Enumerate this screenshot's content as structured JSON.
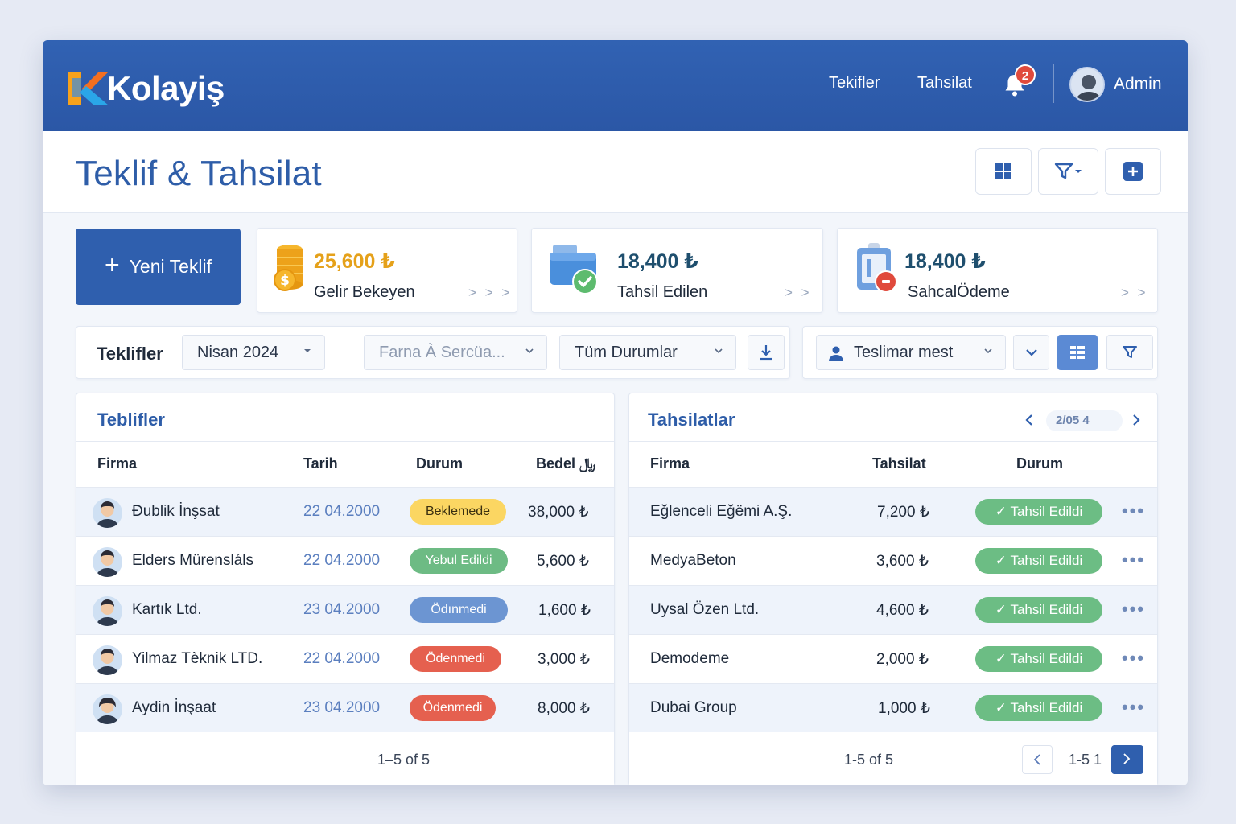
{
  "app": {
    "logo_text": "Kolayiş"
  },
  "nav": {
    "links": [
      "Tekifler",
      "Tahsilat"
    ],
    "notification_count": "2",
    "user": "Admin"
  },
  "page": {
    "title": "Teklif & Tahsilat"
  },
  "toolbar_icons": [
    "grid-icon",
    "filter-icon",
    "add-icon"
  ],
  "new_button": {
    "label": "Yeni Teklif"
  },
  "stats": [
    {
      "amount": "25,600 ₺",
      "label": "Gelir Bekeyen",
      "color": "#e5a11a",
      "icon": "coins-icon"
    },
    {
      "amount": "18,400 ₺",
      "label": "Tahsil Edilen",
      "color": "#1f4f6e",
      "icon": "wallet-check-icon"
    },
    {
      "amount": "18,400 ₺",
      "label": "SahcalÖdeme",
      "color": "#1f4f6e",
      "icon": "clipboard-alert-icon"
    }
  ],
  "filters": {
    "label": "Teklifler",
    "month": "Nisan 2024",
    "company_placeholder": "Farna À Sercüa...",
    "status": "Tüm Durumlar",
    "person": "Teslimar mest"
  },
  "quotes": {
    "title": "Teblifler",
    "columns": [
      "Firma",
      "Tarih",
      "Durum",
      "Bedel ﷼"
    ],
    "rows": [
      {
        "firm": "Đublik İnşsat",
        "date": "22 04.2000",
        "status": "Beklemede",
        "status_color": "yellow",
        "amount": "38,000 ₺"
      },
      {
        "firm": "Elders Mürensláls",
        "date": "22 04.2000",
        "status": "Yebul Edildi",
        "status_color": "green",
        "amount": "5,600 ₺"
      },
      {
        "firm": "Kartık Ltd.",
        "date": "23 04.2000",
        "status": "Ödınmedi",
        "status_color": "blue",
        "amount": "1,600 ₺"
      },
      {
        "firm": "Yilmaz Tèknik LTD.",
        "date": "22 04.2000",
        "status": "Ödenmedi",
        "status_color": "red",
        "amount": "3,000 ₺"
      },
      {
        "firm": "Aydin İnşaat",
        "date": "23 04.2000",
        "status": "Ödenmedi",
        "status_color": "red",
        "amount": "8,000 ₺"
      }
    ],
    "footer": "1–5 of 5"
  },
  "collections": {
    "title": "Tahsilatlar",
    "pager_text": "2/05 4",
    "columns": [
      "Firma",
      "Tahsilat",
      "Durum"
    ],
    "rows": [
      {
        "firm": "Eğlenceli Eğëmi A.Ş.",
        "amount": "7,200 ₺",
        "status": "Tahsil Edildi"
      },
      {
        "firm": "MedyaBeton",
        "amount": "3,600 ₺",
        "status": "Tahsil Edildi"
      },
      {
        "firm": "Uysal Özen Ltd.",
        "amount": "4,600 ₺",
        "status": "Tahsil Edildi"
      },
      {
        "firm": "Demodeme",
        "amount": "2,000 ₺",
        "status": "Tahsil Edildi"
      },
      {
        "firm": "Dubai Group",
        "amount": "1,000 ₺",
        "status": "Tahsil Edildi"
      }
    ],
    "footer": "1-5 of 5",
    "page_label": "1-5 1"
  }
}
